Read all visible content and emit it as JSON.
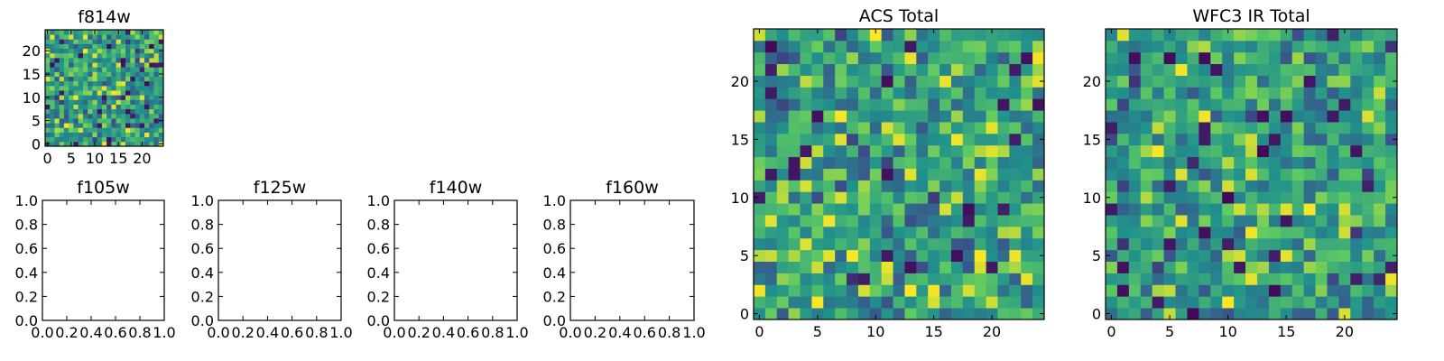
{
  "figure": {
    "background": "#ffffff",
    "colormap": "viridis",
    "colormap_stops": [
      "#440154",
      "#3b528b",
      "#21918c",
      "#5ec962",
      "#fde725"
    ]
  },
  "chart_data": [
    {
      "id": "f814w",
      "type": "heatmap",
      "title": "f814w",
      "grid_size": 25,
      "xlim": [
        -0.5,
        24.5
      ],
      "ylim": [
        -0.5,
        24.5
      ],
      "xticks": [
        0,
        5,
        10,
        15,
        20
      ],
      "yticks": [
        0,
        5,
        10,
        15,
        20
      ],
      "seed": 814
    },
    {
      "id": "f105w",
      "type": "empty",
      "title": "f105w",
      "xlim": [
        0,
        1
      ],
      "ylim": [
        0,
        1
      ],
      "xticks": [
        "0.0",
        "0.2",
        "0.4",
        "0.6",
        "0.8",
        "1.0"
      ],
      "yticks": [
        "0.0",
        "0.2",
        "0.4",
        "0.6",
        "0.8",
        "1.0"
      ]
    },
    {
      "id": "f125w",
      "type": "empty",
      "title": "f125w",
      "xlim": [
        0,
        1
      ],
      "ylim": [
        0,
        1
      ],
      "xticks": [
        "0.0",
        "0.2",
        "0.4",
        "0.6",
        "0.8",
        "1.0"
      ],
      "yticks": [
        "0.0",
        "0.2",
        "0.4",
        "0.6",
        "0.8",
        "1.0"
      ]
    },
    {
      "id": "f140w",
      "type": "empty",
      "title": "f140w",
      "xlim": [
        0,
        1
      ],
      "ylim": [
        0,
        1
      ],
      "xticks": [
        "0.0",
        "0.2",
        "0.4",
        "0.6",
        "0.8",
        "1.0"
      ],
      "yticks": [
        "0.0",
        "0.2",
        "0.4",
        "0.6",
        "0.8",
        "1.0"
      ]
    },
    {
      "id": "f160w",
      "type": "empty",
      "title": "f160w",
      "xlim": [
        0,
        1
      ],
      "ylim": [
        0,
        1
      ],
      "xticks": [
        "0.0",
        "0.2",
        "0.4",
        "0.6",
        "0.8",
        "1.0"
      ],
      "yticks": [
        "0.0",
        "0.2",
        "0.4",
        "0.6",
        "0.8",
        "1.0"
      ]
    },
    {
      "id": "acs_total",
      "type": "heatmap",
      "title": "ACS Total",
      "grid_size": 25,
      "xlim": [
        -0.5,
        24.5
      ],
      "ylim": [
        -0.5,
        24.5
      ],
      "xticks": [
        0,
        5,
        10,
        15,
        20
      ],
      "yticks": [
        0,
        5,
        10,
        15,
        20
      ],
      "seed": 2101
    },
    {
      "id": "wfc3_ir_total",
      "type": "heatmap",
      "title": "WFC3 IR Total",
      "grid_size": 25,
      "xlim": [
        -0.5,
        24.5
      ],
      "ylim": [
        -0.5,
        24.5
      ],
      "xticks": [
        0,
        5,
        10,
        15,
        20
      ],
      "yticks": [
        0,
        5,
        10,
        15,
        20
      ],
      "seed": 3307
    }
  ]
}
